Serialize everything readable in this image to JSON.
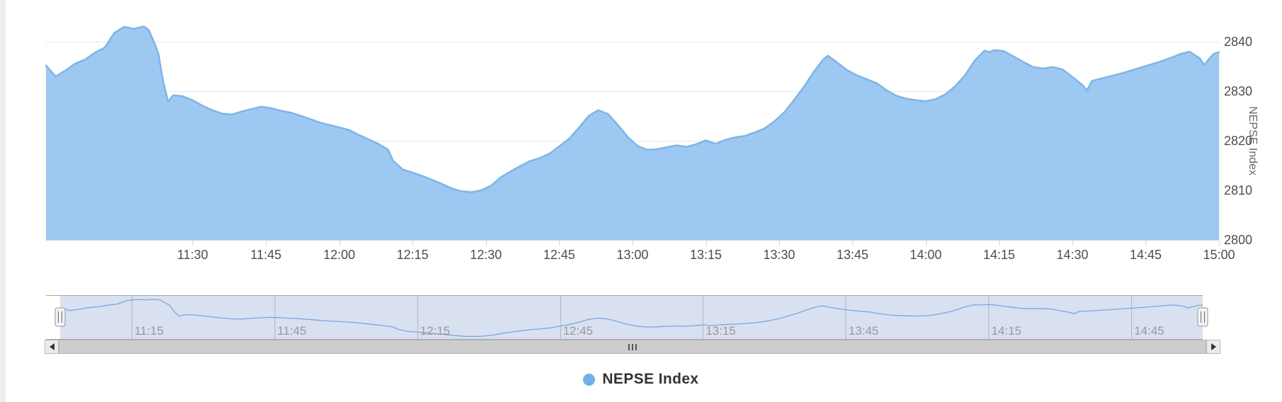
{
  "page": {
    "background_color": "#edeff5",
    "surface_color": "#ffffff"
  },
  "chart": {
    "legend": {
      "label": "NEPSE Index",
      "marker_color": "#6db3ea"
    },
    "y_axis": {
      "title": "NEPSE Index",
      "tick_labels": [
        "2800",
        "2810",
        "2820",
        "2830",
        "2840"
      ],
      "label_color": "#4d4d4d",
      "title_color": "#666666"
    },
    "x_axis": {
      "tick_labels": [
        "11:30",
        "11:45",
        "12:00",
        "12:15",
        "12:30",
        "12:45",
        "13:00",
        "13:15",
        "13:30",
        "13:45",
        "14:00",
        "14:15",
        "14:30",
        "14:45",
        "15:00"
      ],
      "label_color": "#4d4d4d"
    },
    "navigator": {
      "tick_labels": [
        "11:15",
        "11:45",
        "12:15",
        "12:45",
        "13:15",
        "13:45",
        "14:15",
        "14:45"
      ],
      "label_color": "#999999"
    },
    "scrollbar": {
      "left_icon": "left-triangle",
      "right_icon": "right-triangle",
      "grip_icon": "three-bars"
    },
    "colors": {
      "line": "#7cb5ec",
      "fill": "rgba(124,181,236,0.75)",
      "grid": "#e6e6e6",
      "axis_line": "#ccd6eb",
      "tick_mark": "#ccd6eb",
      "nav_mask": "rgba(102,133,194,0.25)",
      "nav_grid": "#c0c6d2",
      "nav_outline": "#a7a7a7",
      "nav_line": "#7cb5ec",
      "handle_fill": "#f2f2f2",
      "handle_stroke": "#999999"
    }
  },
  "chart_data": {
    "type": "area",
    "title": "",
    "xlabel": "",
    "ylabel": "NEPSE Index",
    "x_start": "11:00",
    "x_end": "15:00",
    "ylim": [
      2800,
      2845.7
    ],
    "y_tick_interval": 10,
    "grid": "horizontal",
    "legend_position": "bottom-center",
    "x_ticks": [
      {
        "m": 30,
        "label": "11:30"
      },
      {
        "m": 45,
        "label": "11:45"
      },
      {
        "m": 60,
        "label": "12:00"
      },
      {
        "m": 75,
        "label": "12:15"
      },
      {
        "m": 90,
        "label": "12:30"
      },
      {
        "m": 105,
        "label": "12:45"
      },
      {
        "m": 120,
        "label": "13:00"
      },
      {
        "m": 135,
        "label": "13:15"
      },
      {
        "m": 150,
        "label": "13:30"
      },
      {
        "m": 165,
        "label": "13:45"
      },
      {
        "m": 180,
        "label": "14:00"
      },
      {
        "m": 195,
        "label": "14:15"
      },
      {
        "m": 210,
        "label": "14:30"
      },
      {
        "m": 225,
        "label": "14:45"
      },
      {
        "m": 240,
        "label": "15:00"
      }
    ],
    "y_ticks": [
      2800,
      2810,
      2820,
      2830,
      2840
    ],
    "navigator_ticks": [
      {
        "m": 15,
        "label": "11:15"
      },
      {
        "m": 45,
        "label": "11:45"
      },
      {
        "m": 75,
        "label": "12:15"
      },
      {
        "m": 105,
        "label": "12:45"
      },
      {
        "m": 135,
        "label": "13:15"
      },
      {
        "m": 165,
        "label": "13:45"
      },
      {
        "m": 195,
        "label": "14:15"
      },
      {
        "m": 225,
        "label": "14:45"
      }
    ],
    "series": [
      {
        "name": "NEPSE Index",
        "points_format": "[minutes_after_11:00, index_value]",
        "points": [
          [
            0,
            2835.2
          ],
          [
            2,
            2833.0
          ],
          [
            4,
            2834.2
          ],
          [
            6,
            2835.6
          ],
          [
            8,
            2836.4
          ],
          [
            10,
            2837.8
          ],
          [
            12,
            2838.8
          ],
          [
            14,
            2841.8
          ],
          [
            16,
            2843.0
          ],
          [
            18,
            2842.6
          ],
          [
            20,
            2843.1
          ],
          [
            21,
            2842.4
          ],
          [
            22,
            2840.2
          ],
          [
            23,
            2837.6
          ],
          [
            24,
            2831.8
          ],
          [
            25,
            2827.9
          ],
          [
            26,
            2829.2
          ],
          [
            28,
            2829.0
          ],
          [
            30,
            2828.2
          ],
          [
            32,
            2827.1
          ],
          [
            34,
            2826.2
          ],
          [
            36,
            2825.5
          ],
          [
            38,
            2825.3
          ],
          [
            40,
            2825.9
          ],
          [
            42,
            2826.4
          ],
          [
            44,
            2826.9
          ],
          [
            46,
            2826.6
          ],
          [
            48,
            2826.1
          ],
          [
            50,
            2825.7
          ],
          [
            52,
            2825.1
          ],
          [
            54,
            2824.4
          ],
          [
            56,
            2823.7
          ],
          [
            58,
            2823.2
          ],
          [
            60,
            2822.7
          ],
          [
            62,
            2822.2
          ],
          [
            64,
            2821.2
          ],
          [
            66,
            2820.3
          ],
          [
            68,
            2819.4
          ],
          [
            70,
            2818.2
          ],
          [
            71,
            2816.0
          ],
          [
            73,
            2814.2
          ],
          [
            75,
            2813.6
          ],
          [
            77,
            2812.9
          ],
          [
            79,
            2812.1
          ],
          [
            81,
            2811.3
          ],
          [
            83,
            2810.4
          ],
          [
            85,
            2809.8
          ],
          [
            87,
            2809.6
          ],
          [
            89,
            2810.0
          ],
          [
            91,
            2810.9
          ],
          [
            93,
            2812.6
          ],
          [
            95,
            2813.8
          ],
          [
            97,
            2814.9
          ],
          [
            99,
            2815.9
          ],
          [
            101,
            2816.5
          ],
          [
            103,
            2817.4
          ],
          [
            105,
            2818.9
          ],
          [
            107,
            2820.4
          ],
          [
            109,
            2822.6
          ],
          [
            111,
            2825.0
          ],
          [
            113,
            2826.2
          ],
          [
            115,
            2825.4
          ],
          [
            117,
            2823.2
          ],
          [
            119,
            2820.8
          ],
          [
            121,
            2819.0
          ],
          [
            123,
            2818.2
          ],
          [
            125,
            2818.3
          ],
          [
            127,
            2818.7
          ],
          [
            129,
            2819.1
          ],
          [
            131,
            2818.8
          ],
          [
            133,
            2819.3
          ],
          [
            135,
            2820.1
          ],
          [
            137,
            2819.4
          ],
          [
            139,
            2820.2
          ],
          [
            141,
            2820.7
          ],
          [
            143,
            2821.0
          ],
          [
            145,
            2821.7
          ],
          [
            147,
            2822.5
          ],
          [
            149,
            2823.9
          ],
          [
            151,
            2825.7
          ],
          [
            153,
            2828.2
          ],
          [
            155,
            2830.8
          ],
          [
            157,
            2833.8
          ],
          [
            159,
            2836.4
          ],
          [
            160,
            2837.2
          ],
          [
            162,
            2835.7
          ],
          [
            164,
            2834.2
          ],
          [
            166,
            2833.2
          ],
          [
            168,
            2832.4
          ],
          [
            170,
            2831.6
          ],
          [
            172,
            2830.2
          ],
          [
            174,
            2829.1
          ],
          [
            176,
            2828.5
          ],
          [
            178,
            2828.2
          ],
          [
            180,
            2828.0
          ],
          [
            182,
            2828.4
          ],
          [
            184,
            2829.4
          ],
          [
            186,
            2831.0
          ],
          [
            188,
            2833.2
          ],
          [
            190,
            2836.2
          ],
          [
            192,
            2838.2
          ],
          [
            193,
            2837.9
          ],
          [
            194,
            2838.3
          ],
          [
            196,
            2838.1
          ],
          [
            198,
            2837.0
          ],
          [
            200,
            2835.9
          ],
          [
            202,
            2834.9
          ],
          [
            204,
            2834.6
          ],
          [
            206,
            2834.9
          ],
          [
            208,
            2834.4
          ],
          [
            210,
            2832.9
          ],
          [
            212,
            2831.3
          ],
          [
            213,
            2830.2
          ],
          [
            214,
            2832.1
          ],
          [
            216,
            2832.6
          ],
          [
            218,
            2833.1
          ],
          [
            220,
            2833.6
          ],
          [
            222,
            2834.2
          ],
          [
            224,
            2834.8
          ],
          [
            226,
            2835.4
          ],
          [
            228,
            2836.0
          ],
          [
            230,
            2836.7
          ],
          [
            232,
            2837.5
          ],
          [
            234,
            2838.0
          ],
          [
            236,
            2836.7
          ],
          [
            237,
            2835.3
          ],
          [
            238,
            2836.6
          ],
          [
            239,
            2837.6
          ],
          [
            240,
            2837.9
          ]
        ]
      }
    ]
  }
}
